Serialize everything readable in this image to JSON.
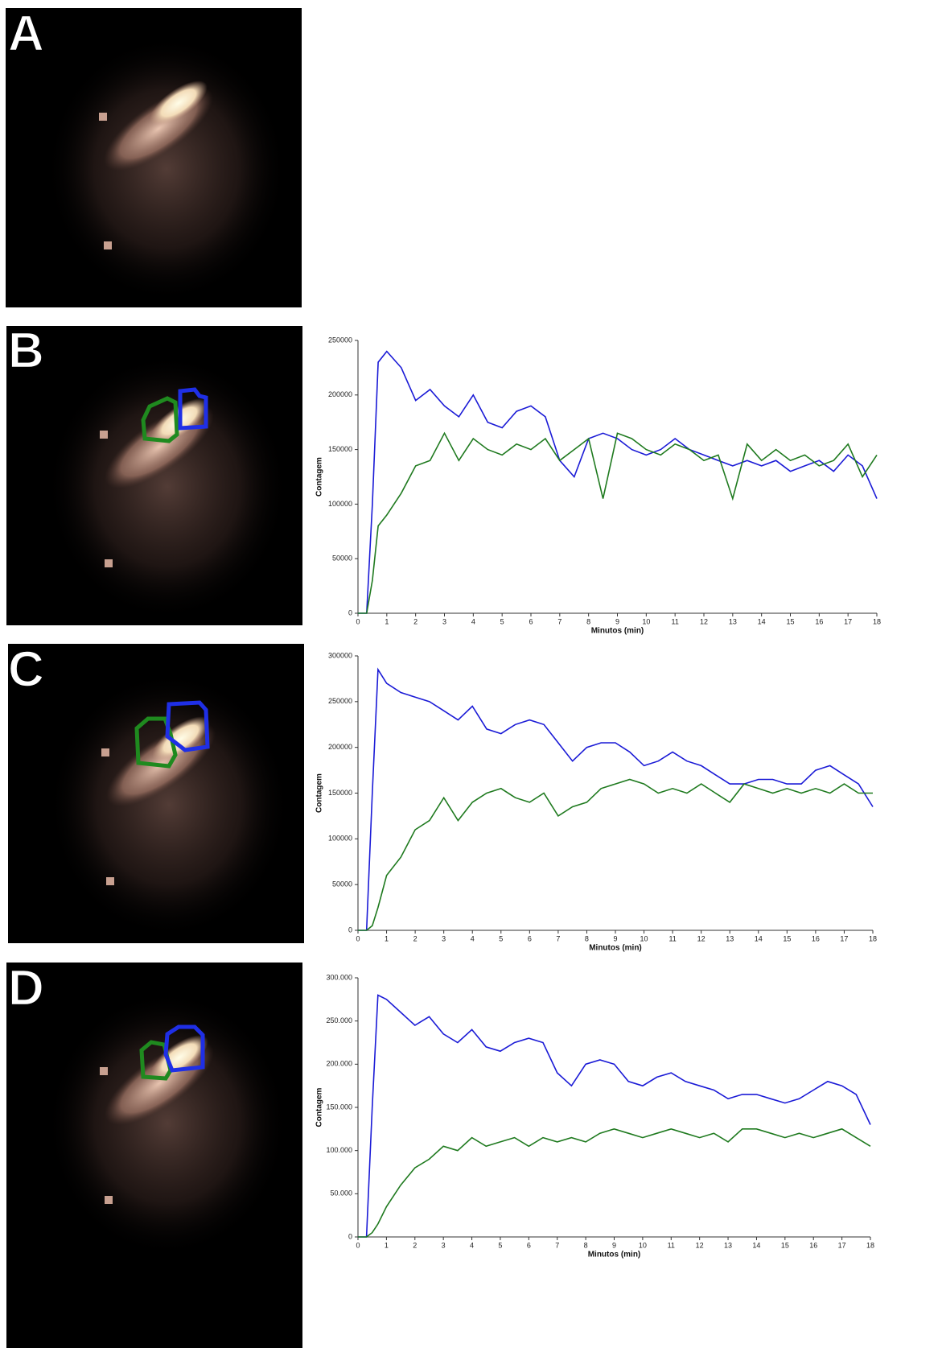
{
  "panels": [
    "A",
    "B",
    "C",
    "D"
  ],
  "chart_data": [
    {
      "type": "line",
      "y_label": "Contagem",
      "x_label": "Minutos (min)",
      "x": [
        0,
        0.3,
        0.5,
        0.7,
        1,
        1.5,
        2,
        2.5,
        3,
        3.5,
        4,
        4.5,
        5,
        5.5,
        6,
        6.5,
        7,
        7.5,
        8,
        8.5,
        9,
        9.5,
        10,
        10.5,
        11,
        11.5,
        12,
        12.5,
        13,
        13.5,
        14,
        14.5,
        15,
        15.5,
        16,
        16.5,
        17,
        17.5,
        18
      ],
      "xlim": [
        0,
        18
      ],
      "xticks": [
        0,
        1,
        2,
        3,
        4,
        5,
        6,
        7,
        8,
        9,
        10,
        11,
        12,
        13,
        14,
        15,
        16,
        17,
        18
      ],
      "ylim": [
        0,
        250000
      ],
      "yticks": [
        0,
        50000,
        100000,
        150000,
        200000,
        250000
      ],
      "series": [
        {
          "color": "#1a1ad6",
          "values": [
            0,
            0,
            100000,
            230000,
            240000,
            225000,
            195000,
            205000,
            190000,
            180000,
            200000,
            175000,
            170000,
            185000,
            190000,
            180000,
            140000,
            125000,
            160000,
            165000,
            160000,
            150000,
            145000,
            150000,
            160000,
            150000,
            145000,
            140000,
            135000,
            140000,
            135000,
            140000,
            130000,
            135000,
            140000,
            130000,
            145000,
            135000,
            105000
          ]
        },
        {
          "color": "#1f7a1f",
          "values": [
            0,
            0,
            30000,
            80000,
            90000,
            110000,
            135000,
            140000,
            165000,
            140000,
            160000,
            150000,
            145000,
            155000,
            150000,
            160000,
            140000,
            150000,
            160000,
            105000,
            165000,
            160000,
            150000,
            145000,
            155000,
            150000,
            140000,
            145000,
            105000,
            155000,
            140000,
            150000,
            140000,
            145000,
            135000,
            140000,
            155000,
            125000,
            145000
          ]
        }
      ]
    },
    {
      "type": "line",
      "y_label": "Contagem",
      "x_label": "Minutos (min)",
      "x": [
        0,
        0.3,
        0.5,
        0.7,
        1,
        1.5,
        2,
        2.5,
        3,
        3.5,
        4,
        4.5,
        5,
        5.5,
        6,
        6.5,
        7,
        7.5,
        8,
        8.5,
        9,
        9.5,
        10,
        10.5,
        11,
        11.5,
        12,
        12.5,
        13,
        13.5,
        14,
        14.5,
        15,
        15.5,
        16,
        16.5,
        17,
        17.5,
        18
      ],
      "xlim": [
        0,
        18
      ],
      "xticks": [
        0,
        1,
        2,
        3,
        4,
        5,
        6,
        7,
        8,
        9,
        10,
        11,
        12,
        13,
        14,
        15,
        16,
        17,
        18
      ],
      "ylim": [
        0,
        300000
      ],
      "yticks": [
        0,
        50000,
        100000,
        150000,
        200000,
        250000,
        300000
      ],
      "series": [
        {
          "color": "#1a1ad6",
          "values": [
            0,
            0,
            150000,
            285000,
            270000,
            260000,
            255000,
            250000,
            240000,
            230000,
            245000,
            220000,
            215000,
            225000,
            230000,
            225000,
            205000,
            185000,
            200000,
            205000,
            205000,
            195000,
            180000,
            185000,
            195000,
            185000,
            180000,
            170000,
            160000,
            160000,
            165000,
            165000,
            160000,
            160000,
            175000,
            180000,
            170000,
            160000,
            135000
          ]
        },
        {
          "color": "#1f7a1f",
          "values": [
            0,
            0,
            5000,
            25000,
            60000,
            80000,
            110000,
            120000,
            145000,
            120000,
            140000,
            150000,
            155000,
            145000,
            140000,
            150000,
            125000,
            135000,
            140000,
            155000,
            160000,
            165000,
            160000,
            150000,
            155000,
            150000,
            160000,
            150000,
            140000,
            160000,
            155000,
            150000,
            155000,
            150000,
            155000,
            150000,
            160000,
            150000,
            150000
          ]
        }
      ]
    },
    {
      "type": "line",
      "y_label": "Contagem",
      "x_label": "Minutos (min)",
      "x": [
        0,
        0.3,
        0.5,
        0.7,
        1,
        1.5,
        2,
        2.5,
        3,
        3.5,
        4,
        4.5,
        5,
        5.5,
        6,
        6.5,
        7,
        7.5,
        8,
        8.5,
        9,
        9.5,
        10,
        10.5,
        11,
        11.5,
        12,
        12.5,
        13,
        13.5,
        14,
        14.5,
        15,
        15.5,
        16,
        16.5,
        17,
        17.5,
        18
      ],
      "xlim": [
        0,
        18
      ],
      "xticks": [
        0,
        1,
        2,
        3,
        4,
        5,
        6,
        7,
        8,
        9,
        10,
        11,
        12,
        13,
        14,
        15,
        16,
        17,
        18
      ],
      "ylim": [
        0,
        300000
      ],
      "yticks": [
        0,
        {
          "value": 50000,
          "label": "50.000"
        },
        {
          "value": 100000,
          "label": "100.000"
        },
        {
          "value": 150000,
          "label": "150.000"
        },
        {
          "value": 200000,
          "label": "200.000"
        },
        {
          "value": 250000,
          "label": "250.000"
        },
        {
          "value": 300000,
          "label": "300.000"
        }
      ],
      "series": [
        {
          "color": "#1a1ad6",
          "values": [
            0,
            0,
            150000,
            280000,
            275000,
            260000,
            245000,
            255000,
            235000,
            225000,
            240000,
            220000,
            215000,
            225000,
            230000,
            225000,
            190000,
            175000,
            200000,
            205000,
            200000,
            180000,
            175000,
            185000,
            190000,
            180000,
            175000,
            170000,
            160000,
            165000,
            165000,
            160000,
            155000,
            160000,
            170000,
            180000,
            175000,
            165000,
            130000
          ]
        },
        {
          "color": "#1f7a1f",
          "values": [
            0,
            0,
            5000,
            15000,
            35000,
            60000,
            80000,
            90000,
            105000,
            100000,
            115000,
            105000,
            110000,
            115000,
            105000,
            115000,
            110000,
            115000,
            110000,
            120000,
            125000,
            120000,
            115000,
            120000,
            125000,
            120000,
            115000,
            120000,
            110000,
            125000,
            125000,
            120000,
            115000,
            120000,
            115000,
            120000,
            125000,
            115000,
            105000
          ]
        }
      ]
    }
  ]
}
